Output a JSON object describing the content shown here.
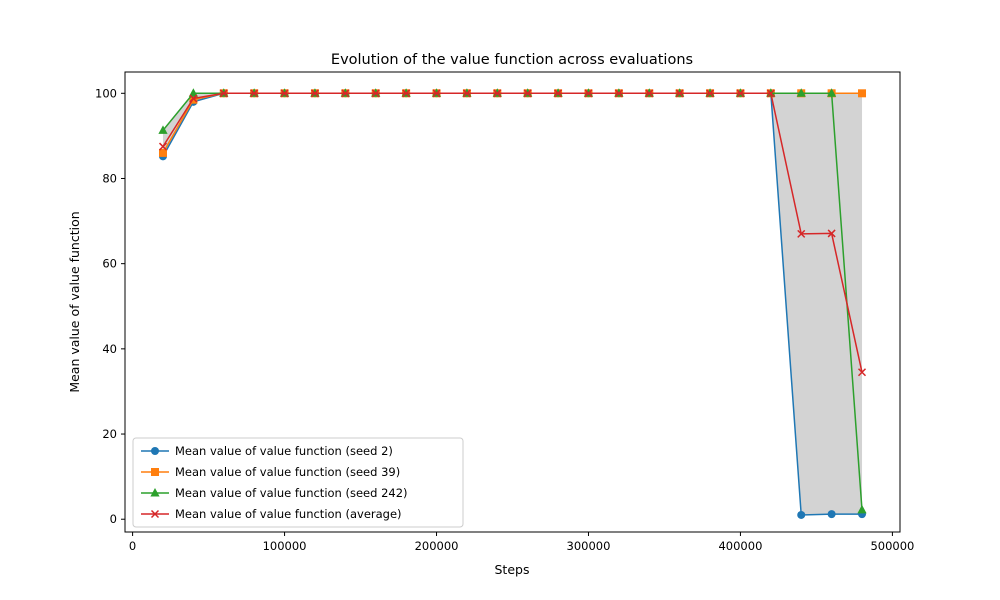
{
  "chart_data": {
    "type": "line",
    "title": "Evolution of the value function across evaluations",
    "xlabel": "Steps",
    "ylabel": "Mean value of value function",
    "xlim": [
      -5000,
      505000
    ],
    "ylim": [
      -3,
      105
    ],
    "xticks": [
      0,
      100000,
      200000,
      300000,
      400000,
      500000
    ],
    "xtick_labels": [
      "0",
      "100000",
      "200000",
      "300000",
      "400000",
      "500000"
    ],
    "yticks": [
      0,
      20,
      40,
      60,
      80,
      100
    ],
    "ytick_labels": [
      "0",
      "20",
      "40",
      "60",
      "80",
      "100"
    ],
    "grid": false,
    "legend_position": "lower-left",
    "x": [
      20000,
      40000,
      60000,
      80000,
      100000,
      120000,
      140000,
      160000,
      180000,
      200000,
      220000,
      240000,
      260000,
      280000,
      300000,
      320000,
      340000,
      360000,
      380000,
      400000,
      420000,
      440000,
      460000,
      480000
    ],
    "series": [
      {
        "name": "Mean value of value function (seed 2)",
        "color": "#1f77b4",
        "marker": "circle",
        "values": [
          85.2,
          98.0,
          100,
          100,
          100,
          100,
          100,
          100,
          100,
          100,
          100,
          100,
          100,
          100,
          100,
          100,
          100,
          100,
          100,
          100,
          100,
          1.0,
          1.2,
          1.2
        ]
      },
      {
        "name": "Mean value of value function (seed 39)",
        "color": "#ff7f0e",
        "marker": "square",
        "values": [
          86.0,
          98.5,
          100,
          100,
          100,
          100,
          100,
          100,
          100,
          100,
          100,
          100,
          100,
          100,
          100,
          100,
          100,
          100,
          100,
          100,
          100,
          100,
          100,
          100
        ]
      },
      {
        "name": "Mean value of value function (seed 242)",
        "color": "#2ca02c",
        "marker": "triangle",
        "values": [
          91.3,
          100,
          100,
          100,
          100,
          100,
          100,
          100,
          100,
          100,
          100,
          100,
          100,
          100,
          100,
          100,
          100,
          100,
          100,
          100,
          100,
          100,
          100,
          2.2
        ]
      },
      {
        "name": "Mean value of value function (average)",
        "color": "#d62728",
        "marker": "x",
        "values": [
          87.5,
          98.8,
          100,
          100,
          100,
          100,
          100,
          100,
          100,
          100,
          100,
          100,
          100,
          100,
          100,
          100,
          100,
          100,
          100,
          100,
          100,
          67.0,
          67.1,
          34.5
        ]
      }
    ],
    "band": {
      "between": "min-max of seeds",
      "color": "#d3d3d3"
    }
  }
}
